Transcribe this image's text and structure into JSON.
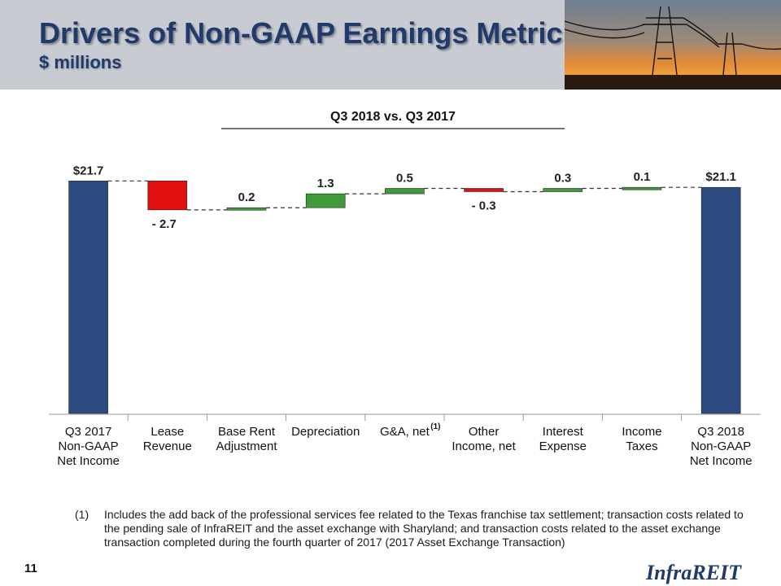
{
  "slide": {
    "title": "Drivers of Non-GAAP Earnings Metric",
    "subtitle": "$ millions",
    "page_number": "11",
    "logo_text": "InfraREIT",
    "footnote_marker": "(1)",
    "footnote_text": "Includes the add back of the professional services fee related to the Texas franchise tax settlement; transaction costs related to the pending sale of InfraREIT and the asset exchange with Sharyland; and transaction costs related to the asset exchange transaction completed during the fourth quarter of 2017 (2017 Asset Exchange Transaction)"
  },
  "colors": {
    "header_bg": "#c8ccd2",
    "title": "#1f3a6b",
    "total_bar": "#2a4a80",
    "increase_bar": "#3f9a3c",
    "decrease_bar": "#e01010"
  },
  "chart_data": {
    "type": "bar",
    "subtype": "waterfall",
    "title": "Q3 2018 vs. Q3 2017",
    "categories": [
      [
        "Q3 2017",
        "Non-GAAP",
        "Net Income"
      ],
      [
        "Lease",
        "Revenue"
      ],
      [
        "Base Rent",
        "Adjustment"
      ],
      [
        "Depreciation"
      ],
      [
        "G&A, net"
      ],
      [
        "Other",
        "Income, net"
      ],
      [
        "Interest",
        "Expense"
      ],
      [
        "Income",
        "Taxes"
      ],
      [
        "Q3 2018",
        "Non-GAAP",
        "Net Income"
      ]
    ],
    "category_superscripts": [
      "",
      "",
      "",
      "",
      "(1)",
      "",
      "",
      "",
      ""
    ],
    "values": [
      21.7,
      -2.7,
      0.2,
      1.3,
      0.5,
      -0.3,
      0.3,
      0.1,
      21.1
    ],
    "kinds": [
      "total",
      "decrease",
      "increase",
      "increase",
      "increase",
      "decrease",
      "increase",
      "increase",
      "total"
    ],
    "labels": [
      "$21.7",
      "- 2.7",
      "0.2",
      "1.3",
      "0.5",
      "- 0.3",
      "0.3",
      "0.1",
      "$21.1"
    ],
    "connectors": true,
    "grid": false
  }
}
